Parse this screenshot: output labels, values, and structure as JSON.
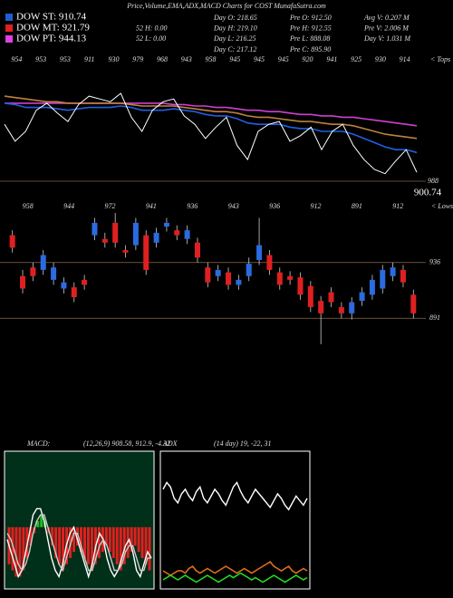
{
  "header": {
    "title": "Price,Volume,EMA,ADX,MACD Charts for COST MunafaSutra.com",
    "legend": [
      {
        "label": "DOW ST: 910.74",
        "color": "#1f5fd0"
      },
      {
        "label": "DOW MT: 921.79",
        "color": "#e02020"
      },
      {
        "label": "DOW PT: 944.13",
        "color": "#e040e0"
      }
    ],
    "stats": [
      [
        "52 H: 0.00",
        "52 L: 0.00"
      ],
      [
        "Day O: 218.65",
        "Day H: 219.10",
        "Day L: 216.25",
        "Day C: 217.12"
      ],
      [
        "Pre O: 912.50",
        "Pre H: 912.55",
        "Pre L: 888.08",
        "Pre C: 895.90"
      ],
      [
        "Avg V: 0.207 M",
        "Pre V: 2.006 M",
        "Day V: 1.031 M"
      ]
    ]
  },
  "chart_data": [
    {
      "type": "line",
      "top_labels": [
        "954",
        "953",
        "953",
        "911",
        "930",
        "979",
        "968",
        "943",
        "958",
        "945",
        "945",
        "945",
        "920",
        "941",
        "925",
        "930",
        "914"
      ],
      "annotations": [
        "< Tops",
        "988",
        "900.74"
      ],
      "ylim": [
        880,
        970
      ],
      "series": [
        {
          "color": "#d040d0",
          "values": [
            945,
            945,
            945,
            945,
            945,
            945,
            945,
            945,
            945,
            945,
            945,
            945,
            945,
            945,
            945,
            945,
            944,
            944,
            943,
            943,
            942,
            942,
            941,
            940,
            940,
            939,
            939,
            938,
            937,
            937,
            936,
            936,
            935,
            935,
            934,
            933,
            932,
            931,
            930,
            929
          ]
        },
        {
          "color": "#c08040",
          "values": [
            950,
            949,
            948,
            947,
            946,
            946,
            945,
            945,
            945,
            945,
            945,
            945,
            944,
            943,
            943,
            943,
            943,
            942,
            941,
            940,
            939,
            939,
            938,
            936,
            935,
            935,
            934,
            933,
            932,
            932,
            931,
            930,
            930,
            929,
            927,
            925,
            923,
            922,
            921,
            920
          ]
        },
        {
          "color": "#2060e0",
          "values": [
            945,
            944,
            942,
            942,
            942,
            941,
            940,
            941,
            942,
            942,
            942,
            943,
            942,
            940,
            940,
            940,
            941,
            940,
            939,
            937,
            936,
            936,
            934,
            931,
            930,
            930,
            930,
            928,
            927,
            927,
            925,
            925,
            925,
            923,
            920,
            917,
            914,
            912,
            912,
            910
          ]
        },
        {
          "color": "#ffffff",
          "values": [
            930,
            918,
            925,
            940,
            945,
            938,
            932,
            944,
            950,
            948,
            946,
            952,
            935,
            925,
            940,
            946,
            948,
            936,
            930,
            920,
            928,
            935,
            915,
            905,
            925,
            930,
            932,
            918,
            922,
            928,
            912,
            925,
            930,
            915,
            905,
            898,
            895,
            904,
            912,
            896
          ]
        }
      ]
    },
    {
      "type": "candlestick",
      "top_labels": [
        "958",
        "944",
        "972",
        "941",
        "936",
        "943",
        "936",
        "912",
        "891",
        "912"
      ],
      "annotations": [
        "< Lows"
      ],
      "ylim": [
        870,
        976
      ],
      "levels": [
        936,
        891
      ],
      "up_color": "#2a6be0",
      "down_color": "#e02020",
      "open": [
        958,
        925,
        932,
        930,
        922,
        915,
        916,
        922,
        958,
        955,
        968,
        946,
        950,
        958,
        952,
        965,
        962,
        955,
        952,
        932,
        925,
        928,
        918,
        925,
        938,
        942,
        928,
        925,
        924,
        917,
        905,
        912,
        900,
        895,
        905,
        910,
        915,
        925,
        930,
        910
      ],
      "close": [
        948,
        915,
        925,
        942,
        932,
        920,
        908,
        918,
        968,
        952,
        952,
        944,
        968,
        930,
        960,
        968,
        958,
        962,
        940,
        920,
        930,
        918,
        922,
        935,
        950,
        930,
        918,
        922,
        910,
        900,
        895,
        904,
        895,
        904,
        912,
        922,
        930,
        932,
        920,
        895
      ],
      "high": [
        962,
        930,
        936,
        946,
        936,
        924,
        920,
        926,
        972,
        960,
        976,
        950,
        972,
        962,
        964,
        972,
        966,
        966,
        956,
        936,
        934,
        932,
        926,
        940,
        972,
        946,
        932,
        929,
        928,
        921,
        909,
        916,
        904,
        908,
        916,
        926,
        934,
        936,
        934,
        914
      ],
      "low": [
        944,
        911,
        921,
        926,
        918,
        911,
        904,
        914,
        954,
        948,
        948,
        940,
        946,
        926,
        948,
        961,
        954,
        951,
        936,
        916,
        921,
        914,
        914,
        921,
        934,
        926,
        914,
        918,
        906,
        896,
        870,
        900,
        891,
        890,
        901,
        906,
        911,
        921,
        916,
        891
      ]
    },
    {
      "type": "macd",
      "title": "MACD:",
      "subtitle": "(12,26,9) 908.58, 912.9, -4.32",
      "ylim": [
        -10,
        12
      ],
      "up_color": "#20c020",
      "down_color": "#e02020",
      "histogram": [
        -6,
        -7,
        -8,
        -8,
        -7,
        -5,
        -3,
        -1,
        1,
        2,
        1,
        -1,
        -3,
        -5,
        -6,
        -7,
        -6,
        -5,
        -4,
        -3,
        -4,
        -5,
        -6,
        -7,
        -6,
        -5,
        -4,
        -3,
        -4,
        -5,
        -6,
        -7,
        -6,
        -5,
        -4,
        -3,
        -4,
        -5,
        -6,
        -7
      ],
      "series": [
        {
          "color": "#ffffff",
          "values": [
            -2,
            -4,
            -6,
            -8,
            -7,
            -4,
            -1,
            2,
            3,
            3,
            1,
            -2,
            -5,
            -7,
            -8,
            -6,
            -3,
            -1,
            0,
            -2,
            -4,
            -6,
            -8,
            -6,
            -3,
            -1,
            -2,
            -5,
            -7,
            -8,
            -7,
            -5,
            -3,
            -2,
            -4,
            -7,
            -8,
            -6,
            -4,
            -5
          ]
        },
        {
          "color": "#cccccc",
          "values": [
            -1,
            -2,
            -4,
            -6,
            -7,
            -6,
            -4,
            -1,
            1,
            2,
            2,
            0,
            -2,
            -4,
            -6,
            -7,
            -5,
            -3,
            -1,
            -1,
            -3,
            -5,
            -7,
            -7,
            -5,
            -3,
            -2,
            -3,
            -5,
            -7,
            -7,
            -6,
            -4,
            -3,
            -3,
            -5,
            -7,
            -7,
            -5,
            -5
          ]
        }
      ]
    },
    {
      "type": "adx",
      "title": "ADX",
      "subtitle": "(14 day) 19, -22, 31",
      "ylim": [
        0,
        60
      ],
      "series": [
        {
          "color": "#ffffff",
          "values": [
            44,
            47,
            45,
            40,
            38,
            42,
            44,
            41,
            39,
            43,
            45,
            40,
            38,
            41,
            44,
            42,
            39,
            37,
            41,
            45,
            47,
            43,
            40,
            38,
            41,
            44,
            42,
            40,
            38,
            36,
            39,
            42,
            40,
            37,
            35,
            38,
            41,
            39,
            37,
            40
          ]
        },
        {
          "color": "#e07020",
          "values": [
            8,
            7,
            6,
            7,
            8,
            8,
            7,
            9,
            10,
            8,
            7,
            8,
            9,
            8,
            7,
            8,
            9,
            10,
            9,
            8,
            7,
            8,
            9,
            8,
            7,
            8,
            9,
            10,
            11,
            12,
            10,
            9,
            8,
            9,
            10,
            8,
            7,
            8,
            9,
            8
          ]
        },
        {
          "color": "#20e020",
          "values": [
            4,
            5,
            6,
            5,
            4,
            5,
            6,
            5,
            4,
            3,
            4,
            5,
            6,
            5,
            4,
            3,
            4,
            5,
            6,
            5,
            6,
            7,
            6,
            5,
            4,
            5,
            4,
            3,
            4,
            5,
            6,
            5,
            4,
            3,
            4,
            5,
            6,
            5,
            4,
            5
          ]
        }
      ]
    }
  ]
}
